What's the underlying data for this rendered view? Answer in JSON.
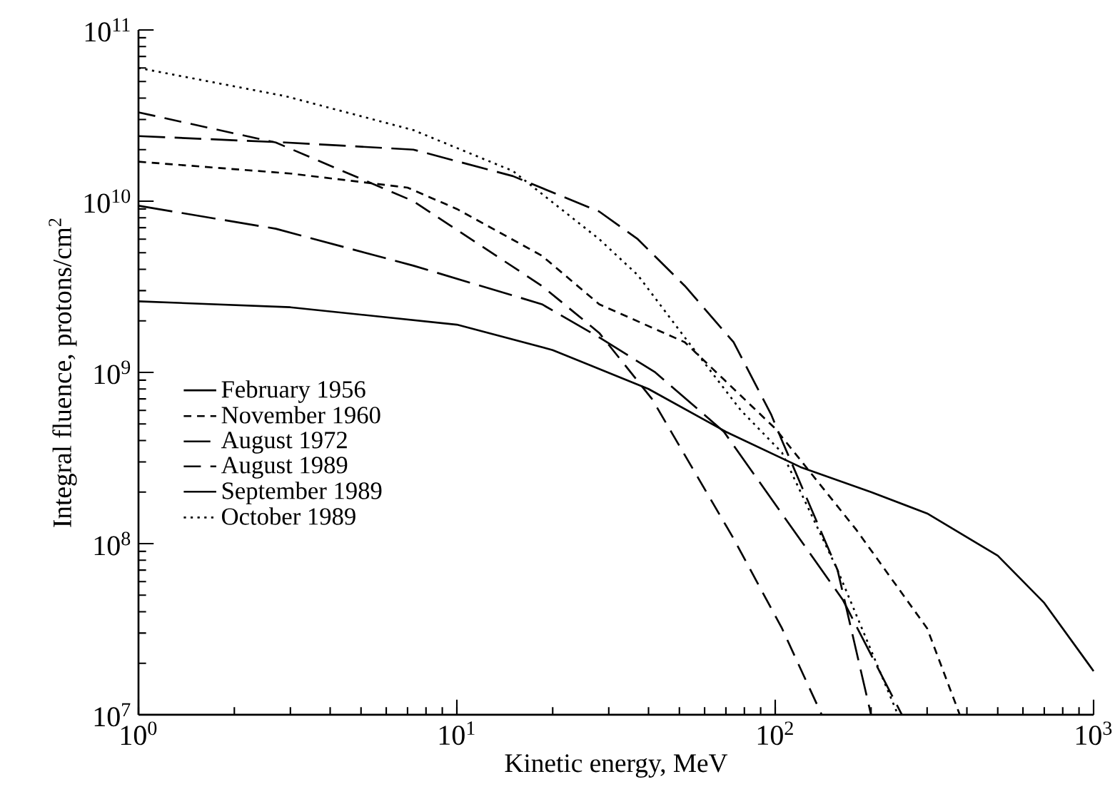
{
  "chart_data": {
    "type": "line",
    "xlabel": "Kinetic energy, MeV",
    "ylabel": "Integral fluence, protons/cm$^{2}$",
    "log": "xy",
    "xlim": [
      1,
      1000
    ],
    "ylim": [
      10000000.0,
      100000000000.0
    ],
    "xticks": [
      {
        "value": 1,
        "label": "10$^{0}$"
      },
      {
        "value": 10,
        "label": "10$^{1}$"
      },
      {
        "value": 100,
        "label": "10$^{2}$"
      },
      {
        "value": 1000,
        "label": "10$^{3}$"
      }
    ],
    "yticks": [
      {
        "value": 10000000.0,
        "label": "10$^{7}$"
      },
      {
        "value": 100000000.0,
        "label": "10$^{8}$"
      },
      {
        "value": 1000000000.0,
        "label": "10$^{9}$"
      },
      {
        "value": 10000000000.0,
        "label": "10$^{10}$"
      },
      {
        "value": 100000000000.0,
        "label": "10$^{11}$"
      }
    ],
    "legend": "left",
    "grid": false,
    "series": [
      {
        "name": "February 1956",
        "color": "#000000",
        "line_style": "solid",
        "x": [
          1,
          3,
          10,
          20,
          40,
          70,
          120,
          200,
          300,
          500,
          700,
          1000
        ],
        "values": [
          2600000000.0,
          2400000000.0,
          1900000000.0,
          1350000000.0,
          800000000.0,
          450000000.0,
          280000000.0,
          200000000.0,
          150000000.0,
          85000000.0,
          45000000.0,
          18000000.0
        ]
      },
      {
        "name": "November 1960",
        "color": "#000000",
        "line_style": "dashed",
        "x": [
          1,
          3,
          7,
          10,
          18.5,
          28,
          52,
          100,
          180,
          300,
          380
        ],
        "values": [
          17000000000.0,
          14500000000.0,
          12000000000.0,
          9000000000.0,
          4800000000.0,
          2500000000.0,
          1500000000.0,
          470000000.0,
          120000000.0,
          32000000.0,
          10000000.0
        ]
      },
      {
        "name": "August 1972",
        "color": "#000000",
        "line_style": "dashed",
        "x": [
          1,
          2.9,
          7.3,
          15,
          28,
          37,
          52,
          74,
          97,
          105,
          157,
          200
        ],
        "values": [
          24000000000.0,
          22000000000.0,
          20000000000.0,
          14000000000.0,
          8700000000.0,
          6000000000.0,
          3200000000.0,
          1500000000.0,
          570000000.0,
          400000000.0,
          70000000.0,
          10000000.0
        ]
      },
      {
        "name": "August 1989",
        "color": "#000000",
        "line_style": "dashed",
        "x": [
          1,
          2.7,
          7.3,
          18.5,
          28,
          41,
          74,
          105,
          140
        ],
        "values": [
          33000000000.0,
          22000000000.0,
          10000000000.0,
          3200000000.0,
          1700000000.0,
          700000000.0,
          107000000.0,
          32000000.0,
          10000000.0
        ]
      },
      {
        "name": "September 1989",
        "color": "#000000",
        "line_style": "dashed",
        "x": [
          1,
          2.7,
          7.3,
          18.5,
          28,
          42,
          69,
          163,
          250
        ],
        "values": [
          9400000000.0,
          6900000000.0,
          4200000000.0,
          2500000000.0,
          1600000000.0,
          1000000000.0,
          450000000.0,
          47000000.0,
          10000000.0
        ]
      },
      {
        "name": "October 1989",
        "color": "#000000",
        "line_style": "dotted",
        "x": [
          1,
          2.9,
          7.3,
          15,
          28,
          37,
          52,
          78,
          105,
          157,
          243
        ],
        "values": [
          60000000000.0,
          41000000000.0,
          26000000000.0,
          15000000000.0,
          6000000000.0,
          3700000000.0,
          1600000000.0,
          600000000.0,
          340000000.0,
          70000000.0,
          10000000.0
        ]
      }
    ]
  }
}
